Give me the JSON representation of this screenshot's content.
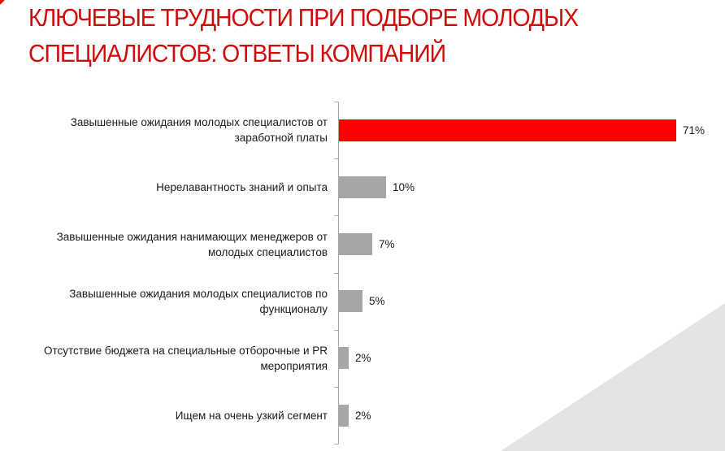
{
  "slide": {
    "title_lines": [
      "КЛЮЧЕВЫЕ ТРУДНОСТИ ПРИ ПОДБОРЕ МОЛОДЫХ",
      "СПЕЦИАЛИСТОВ: ОТВЕТЫ КОМПАНИЙ"
    ],
    "colors": {
      "title": "#d10a0a",
      "highlight_bar": "#ff0000",
      "bar": "#a6a6a6",
      "axis": "#a6a6a6",
      "background_triangle": "#e4e4e4"
    }
  },
  "chart_data": {
    "type": "bar",
    "orientation": "horizontal",
    "title": "КЛЮЧЕВЫЕ ТРУДНОСТИ ПРИ ПОДБОРЕ МОЛОДЫХ СПЕЦИАЛИСТОВ: ОТВЕТЫ КОМПАНИЙ",
    "xlabel": "",
    "ylabel": "",
    "grid": false,
    "legend": null,
    "categories": [
      [
        "Завышенные ожидания молодых специалистов от",
        "заработной платы"
      ],
      [
        "Нерелавантность знаний и опыта"
      ],
      [
        "Завышенные ожидания нанимающих менеджеров от",
        "молодых специалистов"
      ],
      [
        "Завышенные ожидания молодых специалистов по",
        "функционалу"
      ],
      [
        "Отсутствие бюджета на специальные отборочные и PR",
        "мероприятия"
      ],
      [
        "Ищем на очень узкий сегмент"
      ]
    ],
    "values": [
      71,
      10,
      7,
      5,
      2,
      2
    ],
    "value_labels": [
      "71%",
      "10%",
      "7%",
      "5%",
      "2%",
      "2%"
    ],
    "unit": "%",
    "highlight_index": 0,
    "xlim": [
      0,
      71
    ]
  }
}
